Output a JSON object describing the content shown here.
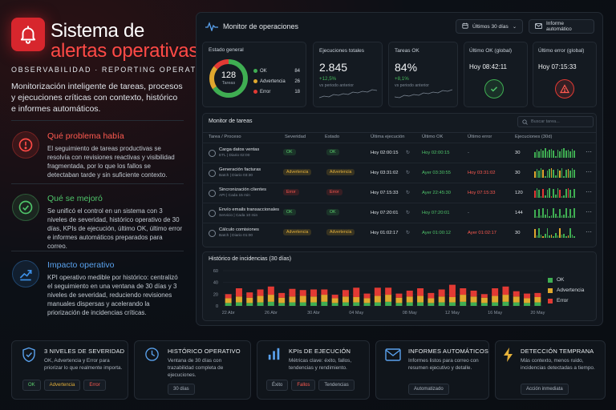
{
  "hero": {
    "title_line1": "Sistema de",
    "title_line2": "alertas operativas",
    "subtitle": "OBSERVABILIDAD · REPORTING OPERATIVO",
    "description": "Monitorización inteligente de tareas, procesos y ejecuciones críticas con contexto, histórico e informes automáticos.",
    "sections": [
      {
        "title": "Qué problema había",
        "text": "El seguimiento de tareas productivas se resolvía con revisiones reactivas y visibilidad fragmentada, por lo que los fallos se detectaban tarde y sin suficiente contexto.",
        "icon": "alert-circle-icon",
        "color": "#ff4a46"
      },
      {
        "title": "Qué se mejoró",
        "text": "Se unificó el control en un sistema con 3 niveles de severidad, histórico operativo de 30 días, KPIs de ejecución, último OK, último error e informes automáticos preparados para correo.",
        "icon": "check-circle-icon",
        "color": "#4fc46a"
      },
      {
        "title": "Impacto operativo",
        "text": "KPI operativo medible por histórico: centralizó el seguimiento en una ventana de 30 días y 3 niveles de severidad, reduciendo revisiones manuales dispersas y acelerando la priorización de incidencias críticas.",
        "icon": "trend-up-icon",
        "color": "#3d8fe6"
      }
    ]
  },
  "dashboard": {
    "title": "Monitor de operaciones",
    "range_button": "Últimos 30 días",
    "report_button": "Informe automático",
    "estado": {
      "label": "Estado general",
      "total": "128",
      "total_label": "Tareas",
      "legend": [
        {
          "name": "OK",
          "value": "84",
          "color": "#3fae52"
        },
        {
          "name": "Advertencia",
          "value": "26",
          "color": "#e0a82e"
        },
        {
          "name": "Error",
          "value": "18",
          "color": "#e23a34"
        }
      ]
    },
    "kpis": [
      {
        "label": "Ejecuciones totales",
        "value": "2.845",
        "delta": "+12,5%",
        "note": "vs periodo anterior"
      },
      {
        "label": "Tareas OK",
        "value": "84%",
        "delta": "+8,1%",
        "note": "vs periodo anterior"
      }
    ],
    "last_ok": {
      "label": "Último OK (global)",
      "value": "Hoy 08:42:11"
    },
    "last_err": {
      "label": "Último error (global)",
      "value": "Hoy 07:15:33"
    },
    "monitor": {
      "title": "Monitor de tareas",
      "search_placeholder": "Buscar tarea...",
      "headers": [
        "Tarea / Proceso",
        "Severidad",
        "Estado",
        "Última ejecución",
        "Último OK",
        "Último error",
        "Ejecuciones (30d)"
      ],
      "rows": [
        {
          "name": "Carga datos ventas",
          "sub": "ETL | Diario 02:00",
          "sev": "OK",
          "sev_class": "ok",
          "estado": "OK",
          "estado_class": "ok",
          "last_exec": "Hoy 02:00:15",
          "last_ok": "Hoy 02:00:15",
          "last_err": "-",
          "runs": "30"
        },
        {
          "name": "Generación facturas",
          "sub": "Batch | Diario 03:30",
          "sev": "Advertencia",
          "sev_class": "warn",
          "estado": "Advertencia",
          "estado_class": "warn",
          "last_exec": "Hoy 03:31:02",
          "last_ok": "Ayer 03:30:55",
          "last_err": "Hoy 03:31:02",
          "runs": "30"
        },
        {
          "name": "Sincronización clientes",
          "sub": "API | Cada 15 min",
          "sev": "Error",
          "sev_class": "err",
          "estado": "Error",
          "estado_class": "err",
          "last_exec": "Hoy 07:15:33",
          "last_ok": "Ayer 22:45:30",
          "last_err": "Hoy 07:15:33",
          "runs": "120"
        },
        {
          "name": "Envío emails transaccionales",
          "sub": "Servicio | Cada 10 min",
          "sev": "OK",
          "sev_class": "ok",
          "estado": "OK",
          "estado_class": "ok",
          "last_exec": "Hoy 07:20:01",
          "last_ok": "Hoy 07:20:01",
          "last_err": "-",
          "runs": "144"
        },
        {
          "name": "Cálculo comisiones",
          "sub": "Batch | Diario 01:00",
          "sev": "Advertencia",
          "sev_class": "warn",
          "estado": "Advertencia",
          "estado_class": "warn",
          "last_exec": "Hoy 01:02:17",
          "last_ok": "Ayer 01:00:12",
          "last_err": "Ayer 01:02:17",
          "runs": "30"
        }
      ]
    }
  },
  "chart_data": {
    "type": "bar",
    "title": "Histórico de incidencias (30 días)",
    "xlabel": "",
    "ylabel": "",
    "ylim": [
      0,
      60
    ],
    "yticks": [
      "0",
      "20",
      "40",
      "60"
    ],
    "x_tick_labels": [
      "22 Abr",
      "26 Abr",
      "30 Abr",
      "04 May",
      "08 May",
      "12 May",
      "16 May",
      "20 May"
    ],
    "stacked": true,
    "categories": [
      "D1",
      "D2",
      "D3",
      "D4",
      "D5",
      "D6",
      "D7",
      "D8",
      "D9",
      "D10",
      "D11",
      "D12",
      "D13",
      "D14",
      "D15",
      "D16",
      "D17",
      "D18",
      "D19",
      "D20",
      "D21",
      "D22",
      "D23",
      "D24",
      "D25",
      "D26",
      "D27",
      "D28",
      "D29",
      "D30"
    ],
    "series": [
      {
        "name": "OK",
        "color": "#3fae52",
        "values": [
          5,
          6,
          5,
          6,
          7,
          5,
          6,
          6,
          6,
          7,
          5,
          6,
          6,
          5,
          6,
          7,
          5,
          6,
          6,
          5,
          6,
          6,
          7,
          6,
          5,
          6,
          7,
          6,
          5,
          6
        ]
      },
      {
        "name": "Advertencia",
        "color": "#e0a82e",
        "values": [
          8,
          10,
          9,
          11,
          12,
          9,
          10,
          11,
          10,
          12,
          8,
          10,
          9,
          8,
          11,
          12,
          9,
          10,
          11,
          8,
          10,
          9,
          12,
          10,
          9,
          11,
          12,
          10,
          8,
          9
        ]
      },
      {
        "name": "Error",
        "color": "#e23a34",
        "values": [
          7,
          14,
          9,
          11,
          14,
          8,
          13,
          10,
          12,
          9,
          6,
          11,
          16,
          8,
          14,
          12,
          7,
          10,
          13,
          9,
          12,
          21,
          11,
          10,
          6,
          13,
          14,
          9,
          8,
          7
        ]
      }
    ],
    "legend_position": "right"
  },
  "features": [
    {
      "title": "3 NIVELES DE SEVERIDAD",
      "text": "OK, Advertencia y Error para priorizar lo que realmente importa.",
      "icon": "shield-icon",
      "chips": [
        "OK",
        "Advertencia",
        "Error"
      ]
    },
    {
      "title": "HISTÓRICO OPERATIVO",
      "text": "Ventana de 30 días con trazabilidad completa de ejecuciones.",
      "icon": "clock-icon",
      "chips": [
        "30 días"
      ]
    },
    {
      "title": "KPIs DE EJECUCIÓN",
      "text": "Métricas clave: éxito, fallos, tendencias y rendimiento.",
      "icon": "bar-chart-icon",
      "chips": [
        "Éxito",
        "Fallos",
        "Tendencias"
      ]
    },
    {
      "title": "INFORMES AUTOMÁTICOS",
      "text": "Informes listos para correo con resumen ejecutivo y detalle.",
      "icon": "mail-icon",
      "chips": [
        "Automatizado"
      ]
    },
    {
      "title": "DETECCIÓN TEMPRANA",
      "text": "Más contexto, menos ruido, incidencias detectadas a tiempo.",
      "icon": "bolt-icon",
      "chips": [
        "Acción inmediata"
      ]
    }
  ]
}
